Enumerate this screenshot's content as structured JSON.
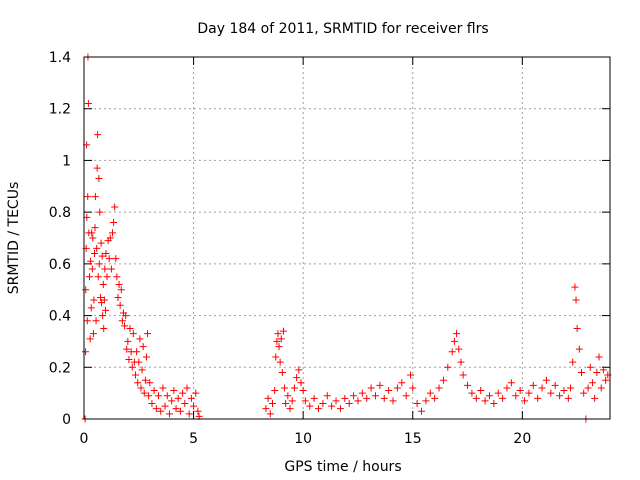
{
  "chart_data": {
    "type": "scatter",
    "title": "Day 184 of 2011, SRMTID for receiver flrs",
    "xlabel": "GPS time / hours",
    "ylabel": "SRMTID / TECUs",
    "xlim": [
      0,
      24
    ],
    "ylim": [
      0,
      1.4
    ],
    "xticks": [
      0,
      5,
      10,
      15,
      20
    ],
    "yticks": [
      0,
      0.2,
      0.4,
      0.6,
      0.8,
      1,
      1.2,
      1.4
    ],
    "xtick_labels": [
      "0",
      "5",
      "10",
      "15",
      "20"
    ],
    "ytick_labels": [
      "0",
      "0.2",
      "0.4",
      "0.6",
      "0.8",
      "1",
      "1.2",
      "1.4"
    ],
    "grid": true,
    "marker": "+",
    "color": "#ff0000",
    "series": [
      {
        "name": "SRMTID",
        "points": [
          [
            0.05,
            0.0
          ],
          [
            0.07,
            0.26
          ],
          [
            0.08,
            0.5
          ],
          [
            0.1,
            0.66
          ],
          [
            0.12,
            1.06
          ],
          [
            0.13,
            0.78
          ],
          [
            0.15,
            0.38
          ],
          [
            0.17,
            0.86
          ],
          [
            0.18,
            1.4
          ],
          [
            0.2,
            1.22
          ],
          [
            0.22,
            0.72
          ],
          [
            0.25,
            0.55
          ],
          [
            0.28,
            0.31
          ],
          [
            0.3,
            0.61
          ],
          [
            0.33,
            0.43
          ],
          [
            0.35,
            0.72
          ],
          [
            0.38,
            0.58
          ],
          [
            0.4,
            0.7
          ],
          [
            0.43,
            0.33
          ],
          [
            0.45,
            0.46
          ],
          [
            0.48,
            0.64
          ],
          [
            0.5,
            0.74
          ],
          [
            0.52,
            0.86
          ],
          [
            0.55,
            0.38
          ],
          [
            0.58,
            0.66
          ],
          [
            0.6,
            0.97
          ],
          [
            0.62,
            1.1
          ],
          [
            0.65,
            0.55
          ],
          [
            0.68,
            0.93
          ],
          [
            0.7,
            0.6
          ],
          [
            0.72,
            0.8
          ],
          [
            0.75,
            0.47
          ],
          [
            0.78,
            0.68
          ],
          [
            0.8,
            0.45
          ],
          [
            0.83,
            0.63
          ],
          [
            0.85,
            0.4
          ],
          [
            0.88,
            0.52
          ],
          [
            0.9,
            0.35
          ],
          [
            0.93,
            0.46
          ],
          [
            0.95,
            0.58
          ],
          [
            0.98,
            0.42
          ],
          [
            1.0,
            0.64
          ],
          [
            1.05,
            0.55
          ],
          [
            1.1,
            0.69
          ],
          [
            1.15,
            0.62
          ],
          [
            1.2,
            0.7
          ],
          [
            1.25,
            0.58
          ],
          [
            1.3,
            0.72
          ],
          [
            1.35,
            0.76
          ],
          [
            1.4,
            0.82
          ],
          [
            1.45,
            0.62
          ],
          [
            1.5,
            0.55
          ],
          [
            1.55,
            0.47
          ],
          [
            1.6,
            0.52
          ],
          [
            1.65,
            0.44
          ],
          [
            1.7,
            0.5
          ],
          [
            1.75,
            0.38
          ],
          [
            1.8,
            0.41
          ],
          [
            1.85,
            0.36
          ],
          [
            1.9,
            0.4
          ],
          [
            1.95,
            0.27
          ],
          [
            2.0,
            0.3
          ],
          [
            2.05,
            0.23
          ],
          [
            2.1,
            0.35
          ],
          [
            2.15,
            0.26
          ],
          [
            2.2,
            0.2
          ],
          [
            2.25,
            0.33
          ],
          [
            2.3,
            0.22
          ],
          [
            2.35,
            0.17
          ],
          [
            2.4,
            0.26
          ],
          [
            2.45,
            0.14
          ],
          [
            2.5,
            0.22
          ],
          [
            2.55,
            0.31
          ],
          [
            2.6,
            0.12
          ],
          [
            2.65,
            0.19
          ],
          [
            2.7,
            0.28
          ],
          [
            2.75,
            0.1
          ],
          [
            2.8,
            0.15
          ],
          [
            2.85,
            0.24
          ],
          [
            2.9,
            0.33
          ],
          [
            2.95,
            0.09
          ],
          [
            3.0,
            0.14
          ],
          [
            3.1,
            0.06
          ],
          [
            3.2,
            0.11
          ],
          [
            3.3,
            0.04
          ],
          [
            3.4,
            0.09
          ],
          [
            3.5,
            0.03
          ],
          [
            3.6,
            0.12
          ],
          [
            3.7,
            0.05
          ],
          [
            3.8,
            0.09
          ],
          [
            3.9,
            0.02
          ],
          [
            4.0,
            0.07
          ],
          [
            4.1,
            0.11
          ],
          [
            4.2,
            0.04
          ],
          [
            4.3,
            0.08
          ],
          [
            4.4,
            0.03
          ],
          [
            4.5,
            0.1
          ],
          [
            4.6,
            0.06
          ],
          [
            4.7,
            0.12
          ],
          [
            4.8,
            0.02
          ],
          [
            4.9,
            0.08
          ],
          [
            5.0,
            0.05
          ],
          [
            5.1,
            0.1
          ],
          [
            5.2,
            0.03
          ],
          [
            5.25,
            0.01
          ],
          [
            8.3,
            0.04
          ],
          [
            8.4,
            0.08
          ],
          [
            8.5,
            0.02
          ],
          [
            8.6,
            0.06
          ],
          [
            8.7,
            0.11
          ],
          [
            8.75,
            0.24
          ],
          [
            8.8,
            0.3
          ],
          [
            8.85,
            0.33
          ],
          [
            8.9,
            0.28
          ],
          [
            8.95,
            0.22
          ],
          [
            9.0,
            0.31
          ],
          [
            9.05,
            0.18
          ],
          [
            9.1,
            0.34
          ],
          [
            9.15,
            0.12
          ],
          [
            9.2,
            0.06
          ],
          [
            9.3,
            0.09
          ],
          [
            9.4,
            0.04
          ],
          [
            9.5,
            0.07
          ],
          [
            9.6,
            0.12
          ],
          [
            9.7,
            0.16
          ],
          [
            9.8,
            0.19
          ],
          [
            9.9,
            0.14
          ],
          [
            10.0,
            0.11
          ],
          [
            10.1,
            0.07
          ],
          [
            10.3,
            0.05
          ],
          [
            10.5,
            0.08
          ],
          [
            10.7,
            0.04
          ],
          [
            10.9,
            0.06
          ],
          [
            11.1,
            0.09
          ],
          [
            11.3,
            0.05
          ],
          [
            11.5,
            0.07
          ],
          [
            11.7,
            0.04
          ],
          [
            11.9,
            0.08
          ],
          [
            12.1,
            0.06
          ],
          [
            12.3,
            0.09
          ],
          [
            12.5,
            0.07
          ],
          [
            12.7,
            0.1
          ],
          [
            12.9,
            0.08
          ],
          [
            13.1,
            0.12
          ],
          [
            13.3,
            0.09
          ],
          [
            13.5,
            0.13
          ],
          [
            13.7,
            0.08
          ],
          [
            13.9,
            0.11
          ],
          [
            14.1,
            0.07
          ],
          [
            14.3,
            0.12
          ],
          [
            14.5,
            0.14
          ],
          [
            14.7,
            0.09
          ],
          [
            14.9,
            0.17
          ],
          [
            15.0,
            0.12
          ],
          [
            15.2,
            0.06
          ],
          [
            15.4,
            0.03
          ],
          [
            15.6,
            0.07
          ],
          [
            15.8,
            0.1
          ],
          [
            16.0,
            0.08
          ],
          [
            16.2,
            0.12
          ],
          [
            16.4,
            0.15
          ],
          [
            16.6,
            0.2
          ],
          [
            16.8,
            0.26
          ],
          [
            16.9,
            0.3
          ],
          [
            17.0,
            0.33
          ],
          [
            17.1,
            0.27
          ],
          [
            17.2,
            0.22
          ],
          [
            17.3,
            0.17
          ],
          [
            17.5,
            0.13
          ],
          [
            17.7,
            0.1
          ],
          [
            17.9,
            0.08
          ],
          [
            18.1,
            0.11
          ],
          [
            18.3,
            0.07
          ],
          [
            18.5,
            0.09
          ],
          [
            18.7,
            0.06
          ],
          [
            18.9,
            0.1
          ],
          [
            19.1,
            0.08
          ],
          [
            19.3,
            0.12
          ],
          [
            19.5,
            0.14
          ],
          [
            19.7,
            0.09
          ],
          [
            19.9,
            0.11
          ],
          [
            20.1,
            0.07
          ],
          [
            20.3,
            0.1
          ],
          [
            20.5,
            0.13
          ],
          [
            20.7,
            0.08
          ],
          [
            20.9,
            0.12
          ],
          [
            21.1,
            0.15
          ],
          [
            21.3,
            0.1
          ],
          [
            21.5,
            0.13
          ],
          [
            21.7,
            0.09
          ],
          [
            21.9,
            0.11
          ],
          [
            22.1,
            0.08
          ],
          [
            22.2,
            0.12
          ],
          [
            22.3,
            0.22
          ],
          [
            22.4,
            0.51
          ],
          [
            22.45,
            0.46
          ],
          [
            22.5,
            0.35
          ],
          [
            22.6,
            0.27
          ],
          [
            22.7,
            0.18
          ],
          [
            22.8,
            0.1
          ],
          [
            22.9,
            0.0
          ],
          [
            23.0,
            0.12
          ],
          [
            23.1,
            0.2
          ],
          [
            23.2,
            0.14
          ],
          [
            23.3,
            0.08
          ],
          [
            23.4,
            0.18
          ],
          [
            23.5,
            0.24
          ],
          [
            23.6,
            0.12
          ],
          [
            23.7,
            0.19
          ],
          [
            23.8,
            0.15
          ],
          [
            23.9,
            0.17
          ]
        ]
      }
    ]
  }
}
